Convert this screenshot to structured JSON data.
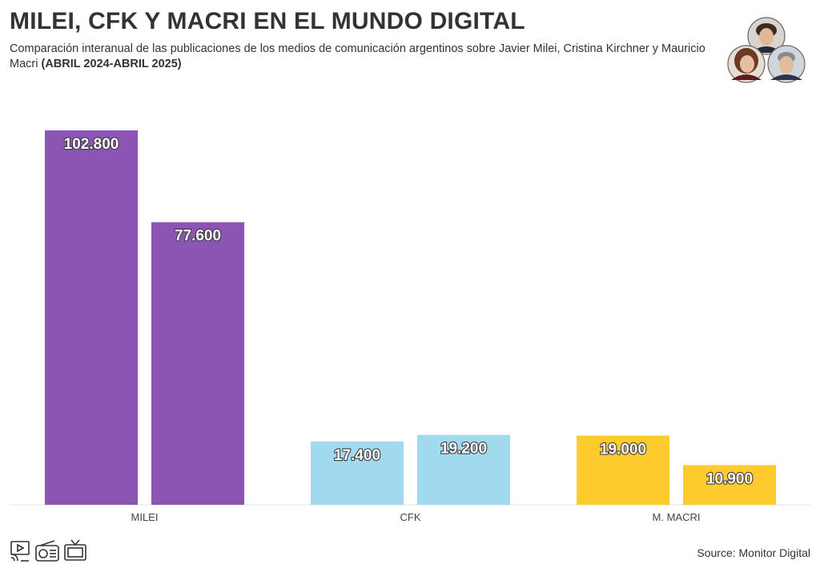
{
  "header": {
    "title": "MILEI, CFK Y MACRI EN EL MUNDO DIGITAL",
    "subtitle": "Comparación interanual de las publicaciones de los medios de comunicación argentinos sobre Javier Milei, Cristina Kirchner y Mauricio Macri",
    "subtitle_bold": "(ABRIL 2024-ABRIL 2025)"
  },
  "footer": {
    "source": "Source: Monitor Digital",
    "icons": [
      "digital-media-icon",
      "radio-icon",
      "television-icon"
    ]
  },
  "chart_data": {
    "type": "bar",
    "categories": [
      "MILEI",
      "CFK",
      "M. MACRI"
    ],
    "bars": [
      {
        "category": "MILEI",
        "values": [
          102800,
          77600
        ],
        "labels": [
          "102.800",
          "77.600"
        ],
        "color": "#8c55b3"
      },
      {
        "category": "CFK",
        "values": [
          17400,
          19200
        ],
        "labels": [
          "17.400",
          "19.200"
        ],
        "color": "#a1d9ee"
      },
      {
        "category": "M. MACRI",
        "values": [
          19000,
          10900
        ],
        "labels": [
          "19.000",
          "10.900"
        ],
        "color": "#fecb2f"
      }
    ],
    "ylim": [
      0,
      105000
    ],
    "grid": false,
    "legend": "none"
  }
}
